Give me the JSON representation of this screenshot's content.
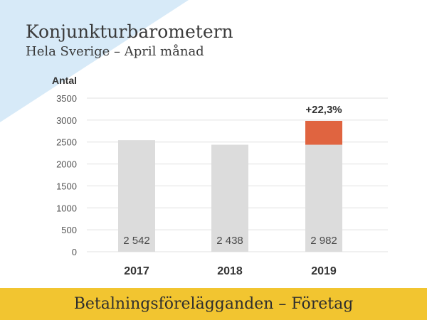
{
  "header": {
    "title": "Konjunkturbarometern",
    "subtitle": "Hela Sverige – April månad"
  },
  "footer": {
    "label": "Betalningsförelägganden – Företag"
  },
  "colors": {
    "corner": "#d7eaf8",
    "bar": "#dcdcdc",
    "increase": "#e06440",
    "footer": "#f2c530",
    "grid": "#e0e0e0",
    "text": "#333333"
  },
  "chart_data": {
    "type": "bar",
    "ylabel": "Antal",
    "ylim": [
      0,
      3500
    ],
    "yticks": [
      0,
      500,
      1000,
      1500,
      2000,
      2500,
      3000,
      3500
    ],
    "grid": true,
    "categories": [
      "2017",
      "2018",
      "2019"
    ],
    "values": [
      2542,
      2438,
      2982
    ],
    "value_labels": [
      "2 542",
      "2 438",
      "2 982"
    ],
    "highlight": {
      "category": "2019",
      "base": 2438,
      "value": 2982,
      "label": "+22,3%"
    }
  }
}
